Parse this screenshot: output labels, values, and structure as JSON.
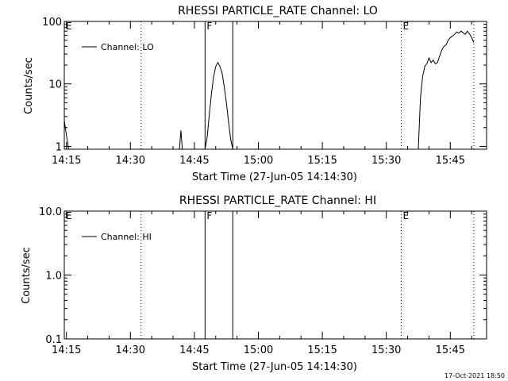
{
  "footer": {
    "timestamp": "17-Oct-2021 18:50"
  },
  "chart_data": [
    {
      "type": "line",
      "title": "RHESSI PARTICLE_RATE Channel: LO",
      "xlabel": "Start Time (27-Jun-05 14:14:30)",
      "ylabel": "Counts/sec",
      "yscale": "log",
      "ylim": [
        0.9,
        100
      ],
      "xlim": [
        "14:14:30",
        "15:53:30"
      ],
      "x_ticks": [
        "14:15",
        "14:30",
        "14:45",
        "15:00",
        "15:15",
        "15:30",
        "15:45"
      ],
      "y_ticks": [
        "1",
        "10",
        "100"
      ],
      "legend": {
        "label": "Channel: LO",
        "placement": "top-left"
      },
      "markers": [
        {
          "time": "14:14:30",
          "label": "E",
          "style": "dotted"
        },
        {
          "time": "14:32:30",
          "label": "",
          "style": "dotted"
        },
        {
          "time": "14:47:30",
          "label": "F",
          "style": "solid"
        },
        {
          "time": "14:54:00",
          "label": "",
          "style": "solid"
        },
        {
          "time": "15:33:30",
          "label": "E",
          "style": "dotted"
        },
        {
          "time": "15:50:30",
          "label": "",
          "style": "dotted"
        }
      ],
      "series": [
        {
          "name": "Channel: LO",
          "segments": [
            [
              [
                "14:14:30",
                2.6
              ],
              [
                "14:15:00",
                1.5
              ],
              [
                "14:15:30",
                0.9
              ]
            ],
            [
              [
                "14:41:30",
                0.9
              ],
              [
                "14:41:50",
                1.8
              ],
              [
                "14:42:10",
                0.9
              ]
            ],
            [
              [
                "14:47:30",
                0.9
              ],
              [
                "14:48:00",
                1.4
              ],
              [
                "14:48:30",
                3.2
              ],
              [
                "14:49:00",
                7
              ],
              [
                "14:49:30",
                13
              ],
              [
                "14:50:00",
                19
              ],
              [
                "14:50:30",
                22
              ],
              [
                "14:51:00",
                19
              ],
              [
                "14:51:30",
                15
              ],
              [
                "14:52:00",
                9
              ],
              [
                "14:52:30",
                5
              ],
              [
                "14:53:00",
                2.5
              ],
              [
                "14:53:30",
                1.3
              ],
              [
                "14:54:00",
                0.9
              ]
            ],
            [
              [
                "15:37:30",
                0.9
              ],
              [
                "15:38:00",
                6
              ],
              [
                "15:38:30",
                13
              ],
              [
                "15:39:00",
                19
              ],
              [
                "15:39:30",
                21
              ],
              [
                "15:40:00",
                26
              ],
              [
                "15:40:30",
                22
              ],
              [
                "15:41:00",
                24
              ],
              [
                "15:41:30",
                21
              ],
              [
                "15:42:00",
                22
              ],
              [
                "15:42:30",
                28
              ],
              [
                "15:43:00",
                35
              ],
              [
                "15:43:30",
                40
              ],
              [
                "15:44:00",
                42
              ],
              [
                "15:44:30",
                50
              ],
              [
                "15:45:00",
                55
              ],
              [
                "15:45:30",
                58
              ],
              [
                "15:46:00",
                62
              ],
              [
                "15:46:30",
                68
              ],
              [
                "15:47:00",
                65
              ],
              [
                "15:47:30",
                70
              ],
              [
                "15:48:00",
                66
              ],
              [
                "15:48:30",
                62
              ],
              [
                "15:49:00",
                70
              ],
              [
                "15:49:30",
                63
              ],
              [
                "15:50:00",
                55
              ],
              [
                "15:50:30",
                46
              ]
            ]
          ]
        }
      ]
    },
    {
      "type": "line",
      "title": "RHESSI PARTICLE_RATE Channel: HI",
      "xlabel": "Start Time (27-Jun-05 14:14:30)",
      "ylabel": "Counts/sec",
      "yscale": "log",
      "ylim": [
        0.1,
        10
      ],
      "xlim": [
        "14:14:30",
        "15:53:30"
      ],
      "x_ticks": [
        "14:15",
        "14:30",
        "14:45",
        "15:00",
        "15:15",
        "15:30",
        "15:45"
      ],
      "y_ticks": [
        "0.1",
        "1.0",
        "10.0"
      ],
      "legend": {
        "label": "Channel: HI",
        "placement": "top-left"
      },
      "markers": [
        {
          "time": "14:14:30",
          "label": "E",
          "style": "dotted"
        },
        {
          "time": "14:32:30",
          "label": "",
          "style": "dotted"
        },
        {
          "time": "14:47:30",
          "label": "F",
          "style": "solid"
        },
        {
          "time": "14:54:00",
          "label": "",
          "style": "solid"
        },
        {
          "time": "15:33:30",
          "label": "E",
          "style": "dotted"
        },
        {
          "time": "15:50:30",
          "label": "",
          "style": "dotted"
        }
      ],
      "series": [
        {
          "name": "Channel: HI",
          "segments": []
        }
      ]
    }
  ]
}
